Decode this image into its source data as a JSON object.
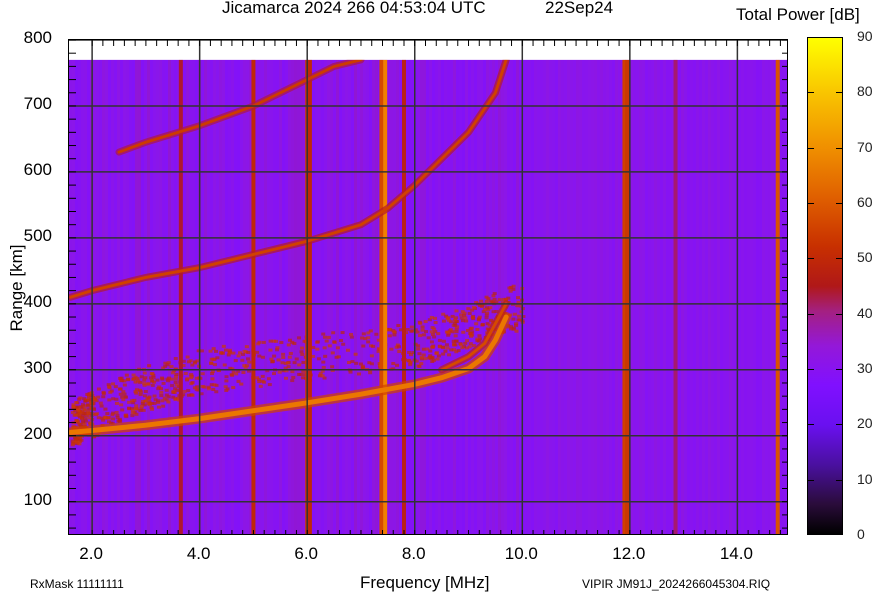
{
  "header": {
    "title": "Jicamarca 2024 266 04:53:04 UTC",
    "date": "22Sep24",
    "colorbar_title": "Total Power [dB]"
  },
  "footer": {
    "rxmask": "RxMask 11111111",
    "filename": "VIPIR  JM91J_2024266045304.RIQ"
  },
  "chart_data": {
    "type": "heatmap",
    "title": "Jicamarca 2024 266 04:53:04 UTC   22Sep24",
    "xlabel": "Frequency [MHz]",
    "ylabel": "Range [km]",
    "colorbar_label": "Total Power [dB]",
    "xlim": [
      1.57,
      14.96
    ],
    "ylim": [
      48,
      800
    ],
    "data_top_range_km": 770,
    "x_ticks": [
      "2.0",
      "4.0",
      "6.0",
      "8.0",
      "10.0",
      "12.0",
      "14.0"
    ],
    "y_ticks": [
      "100",
      "200",
      "300",
      "400",
      "500",
      "600",
      "700",
      "800"
    ],
    "colorbar_ticks": [
      "0",
      "10",
      "20",
      "30",
      "40",
      "50",
      "60",
      "70",
      "80",
      "90"
    ],
    "colorbar_range": [
      0,
      90
    ],
    "grid": true,
    "background_power_db": 30,
    "traces": [
      {
        "name": "F-layer 1st hop (O-mode)",
        "power_db": 70,
        "points": [
          [
            1.6,
            205
          ],
          [
            2.0,
            208
          ],
          [
            3.0,
            216
          ],
          [
            4.0,
            226
          ],
          [
            5.0,
            238
          ],
          [
            6.0,
            250
          ],
          [
            7.0,
            263
          ],
          [
            8.0,
            278
          ],
          [
            8.5,
            288
          ],
          [
            9.0,
            302
          ],
          [
            9.3,
            320
          ],
          [
            9.5,
            345
          ],
          [
            9.7,
            380
          ]
        ]
      },
      {
        "name": "F-layer 1st hop (X-mode)",
        "power_db": 60,
        "points": [
          [
            8.5,
            300
          ],
          [
            9.0,
            320
          ],
          [
            9.3,
            340
          ],
          [
            9.5,
            370
          ],
          [
            9.7,
            400
          ]
        ]
      },
      {
        "name": "Spread F diffuse echoes",
        "power_db": 52,
        "points": [
          [
            1.6,
            220
          ],
          [
            2.0,
            235
          ],
          [
            3.0,
            275
          ],
          [
            4.0,
            300
          ],
          [
            6.0,
            320
          ],
          [
            8.0,
            340
          ],
          [
            9.0,
            370
          ],
          [
            10.0,
            400
          ]
        ]
      },
      {
        "name": "2nd hop",
        "power_db": 58,
        "points": [
          [
            1.6,
            410
          ],
          [
            2.0,
            420
          ],
          [
            3.0,
            440
          ],
          [
            4.0,
            455
          ],
          [
            5.0,
            475
          ],
          [
            6.0,
            495
          ],
          [
            7.0,
            520
          ],
          [
            7.5,
            545
          ],
          [
            8.0,
            580
          ],
          [
            8.5,
            620
          ],
          [
            9.0,
            660
          ],
          [
            9.5,
            720
          ],
          [
            9.7,
            770
          ]
        ]
      },
      {
        "name": "3rd hop",
        "power_db": 56,
        "points": [
          [
            2.5,
            630
          ],
          [
            3.0,
            645
          ],
          [
            4.0,
            670
          ],
          [
            5.0,
            700
          ],
          [
            5.5,
            720
          ],
          [
            6.0,
            740
          ],
          [
            6.5,
            760
          ],
          [
            7.0,
            770
          ]
        ]
      }
    ],
    "interference_lines_mhz": [
      {
        "freq": 3.65,
        "power_db": 45
      },
      {
        "freq": 5.0,
        "power_db": 50
      },
      {
        "freq": 6.0,
        "power_db": 55
      },
      {
        "freq": 6.05,
        "power_db": 50
      },
      {
        "freq": 7.38,
        "power_db": 60
      },
      {
        "freq": 7.45,
        "power_db": 72
      },
      {
        "freq": 7.8,
        "power_db": 48
      },
      {
        "freq": 11.9,
        "power_db": 58
      },
      {
        "freq": 11.95,
        "power_db": 55
      },
      {
        "freq": 12.85,
        "power_db": 42
      },
      {
        "freq": 14.75,
        "power_db": 62
      }
    ]
  }
}
